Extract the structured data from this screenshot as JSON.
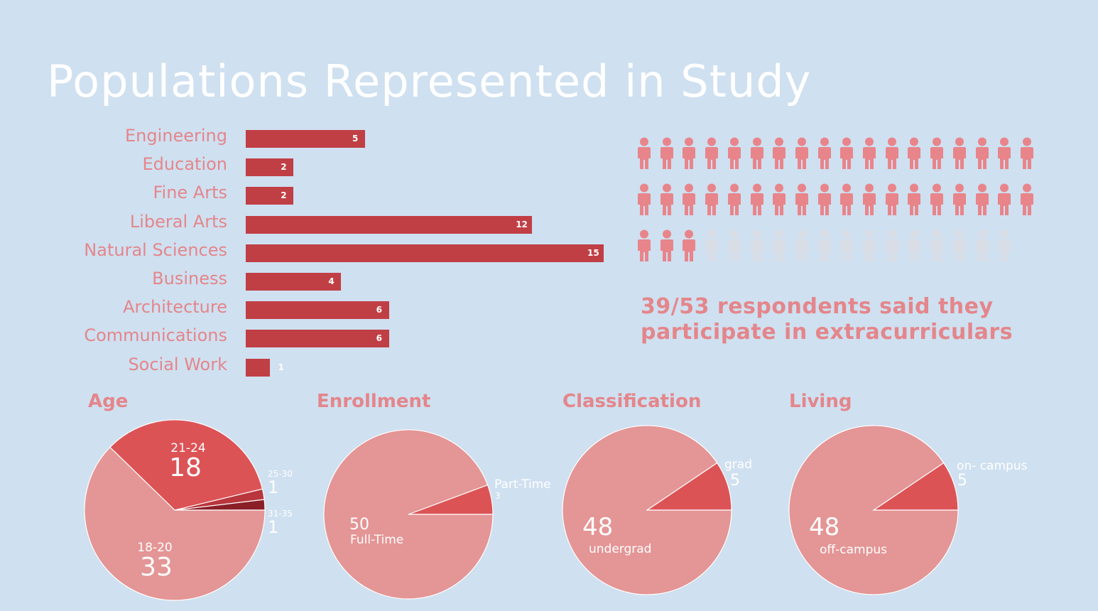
{
  "title": "Populations Represented in Study",
  "colors": {
    "bar": "#c03f45",
    "label": "#e4868b",
    "person_on": "#e8858b",
    "person_off": "#d9dde6",
    "pie_light": "#e49595",
    "pie_mid": "#dc5356",
    "pie_dark": "#b8363c",
    "pie_darkest": "#8a1f27"
  },
  "chart_data": [
    {
      "type": "bar",
      "orientation": "horizontal",
      "categories": [
        "Engineering",
        "Education",
        "Fine Arts",
        "Liberal Arts",
        "Natural Sciences",
        "Business",
        "Architecture",
        "Communications",
        "Social Work"
      ],
      "values": [
        5,
        2,
        2,
        12,
        15,
        4,
        6,
        6,
        1
      ],
      "value_labels": [
        "5",
        "2",
        "2",
        "12",
        "15",
        "4",
        "6",
        "6",
        "1"
      ]
    },
    {
      "type": "pictograph",
      "filled": 39,
      "total": 53,
      "text_line1": "39/53 respondents said they",
      "text_line2": "participate in extracurriculars"
    },
    {
      "type": "pie",
      "title": "Age",
      "slices": [
        {
          "label": "18-20",
          "value": 33,
          "value_text": "33"
        },
        {
          "label": "21-24",
          "value": 18,
          "value_text": "18"
        },
        {
          "label": "25-30",
          "value": 1,
          "value_text": "1"
        },
        {
          "label": "31-35",
          "value": 1,
          "value_text": "1"
        }
      ]
    },
    {
      "type": "pie",
      "title": "Enrollment",
      "slices": [
        {
          "label": "Full-Time",
          "value": 50,
          "value_text": "50"
        },
        {
          "label": "Part-Time",
          "value": 3,
          "value_text": "3"
        }
      ]
    },
    {
      "type": "pie",
      "title": "Classification",
      "slices": [
        {
          "label": "undergrad",
          "value": 48,
          "value_text": "48"
        },
        {
          "label": "grad",
          "value": 5,
          "value_text": "5"
        }
      ]
    },
    {
      "type": "pie",
      "title": "Living",
      "slices": [
        {
          "label": "off-campus",
          "value": 48,
          "value_text": "48"
        },
        {
          "label": "on- campus",
          "value": 5,
          "value_text": "5"
        }
      ]
    }
  ]
}
